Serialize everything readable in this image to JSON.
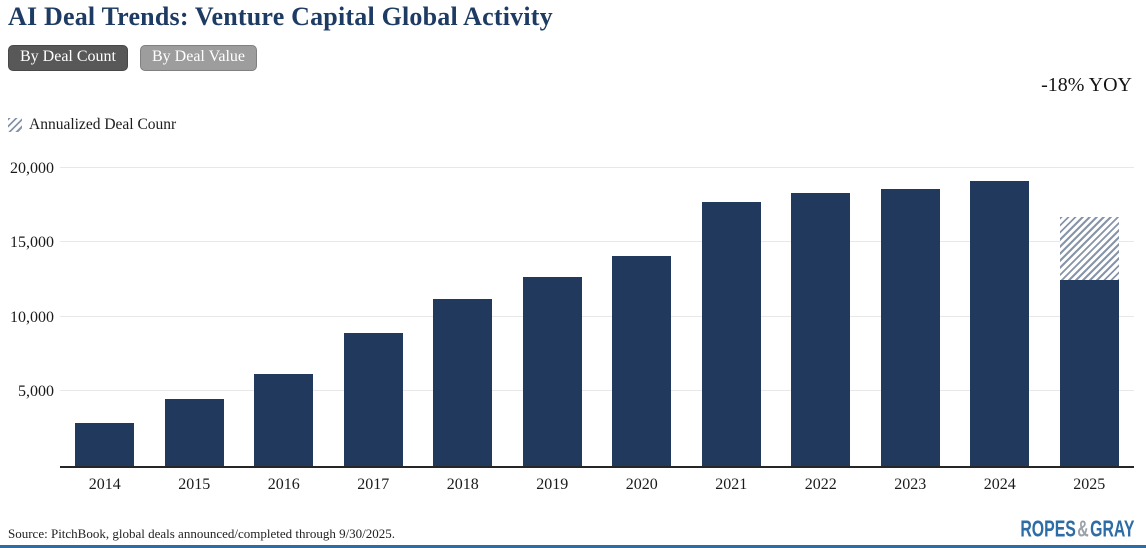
{
  "header": {
    "title": "AI Deal Trends: Venture Capital Global Activity",
    "buttons": [
      {
        "label": "By Deal Count",
        "active": true
      },
      {
        "label": "By Deal Value",
        "active": false
      }
    ]
  },
  "annotation": {
    "yoy": "-18% YOY"
  },
  "legend": {
    "label": "Annualized Deal Counr"
  },
  "chart_data": {
    "type": "bar",
    "title": "AI Deal Trends: Venture Capital Global Activity",
    "categories": [
      "2014",
      "2015",
      "2016",
      "2017",
      "2018",
      "2019",
      "2020",
      "2021",
      "2022",
      "2023",
      "2024",
      "2025"
    ],
    "series": [
      {
        "name": "Deal Count",
        "values": [
          2900,
          4500,
          6200,
          8900,
          11200,
          12700,
          14100,
          17700,
          18300,
          18600,
          19100,
          12500
        ]
      },
      {
        "name": "Annualized Deal Counr",
        "values": [
          null,
          null,
          null,
          null,
          null,
          null,
          null,
          null,
          null,
          null,
          null,
          16700
        ]
      }
    ],
    "xlabel": "",
    "ylabel": "",
    "ylim": [
      0,
      21000
    ],
    "yticks": [
      5000,
      10000,
      15000,
      20000
    ],
    "ytick_labels": [
      "5,000",
      "10,000",
      "15,000",
      "20,000"
    ],
    "grid": true,
    "legend_position": "top-left",
    "colors": {
      "bar": "#21395c",
      "hatch_stripe": "#8795ab",
      "hatch_bg": "#ffffff"
    }
  },
  "footer": {
    "source": "Source: PitchBook, global deals announced/completed through 9/30/2025.",
    "logo": {
      "ropes": "ROPES",
      "amp": "&",
      "gray": "GRAY"
    }
  }
}
